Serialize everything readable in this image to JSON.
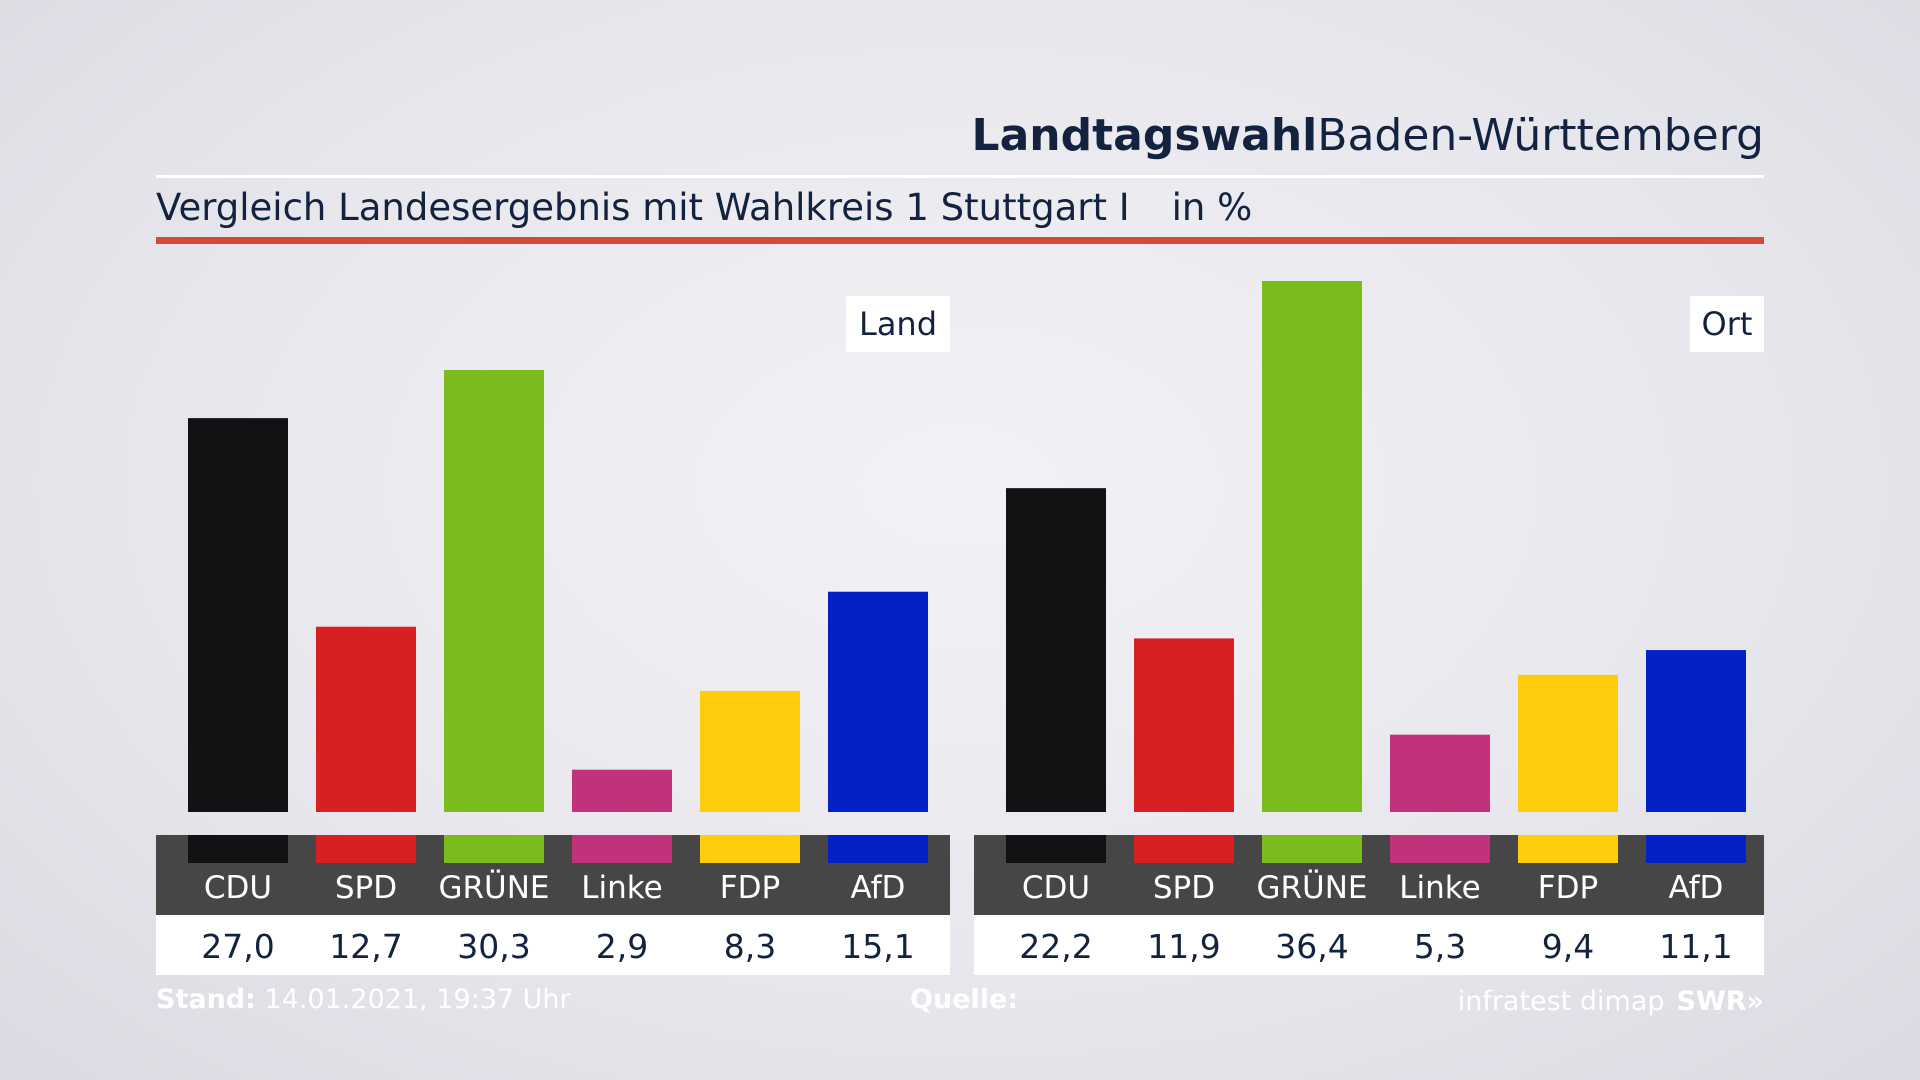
{
  "header": {
    "title_bold": "Landtagswahl",
    "title_rest": "Baden-Württemberg",
    "subtitle": "Vergleich Landesergebnis mit Wahlkreis 1 Stuttgart I",
    "unit": "in %"
  },
  "footer": {
    "stand_label": "Stand:",
    "stand_value": "14.01.2021, 19:37 Uhr",
    "source_label": "Quelle:",
    "source_value": "infratest dimap",
    "logo": "SWR»"
  },
  "colors": {
    "CDU": "#111214",
    "SPD": "#d81f21",
    "GRÜNE": "#79bc1b",
    "Linke": "#c03279",
    "FDP": "#ffcc0b",
    "AfD": "#0421c8",
    "label_band": "#464646",
    "accent_rule": "#d24b36"
  },
  "chart_data": [
    {
      "type": "bar",
      "title": "Land",
      "categories": [
        "CDU",
        "SPD",
        "GRÜNE",
        "Linke",
        "FDP",
        "AfD"
      ],
      "values": [
        27.0,
        12.7,
        30.3,
        2.9,
        8.3,
        15.1
      ],
      "value_labels": [
        "27,0",
        "12,7",
        "30,3",
        "2,9",
        "8,3",
        "15,1"
      ],
      "ylim": [
        0,
        36.4
      ],
      "grid": false
    },
    {
      "type": "bar",
      "title": "Ort",
      "categories": [
        "CDU",
        "SPD",
        "GRÜNE",
        "Linke",
        "FDP",
        "AfD"
      ],
      "values": [
        22.2,
        11.9,
        36.4,
        5.3,
        9.4,
        11.1
      ],
      "value_labels": [
        "22,2",
        "11,9",
        "36,4",
        "5,3",
        "9,4",
        "11,1"
      ],
      "ylim": [
        0,
        36.4
      ],
      "grid": false
    }
  ]
}
